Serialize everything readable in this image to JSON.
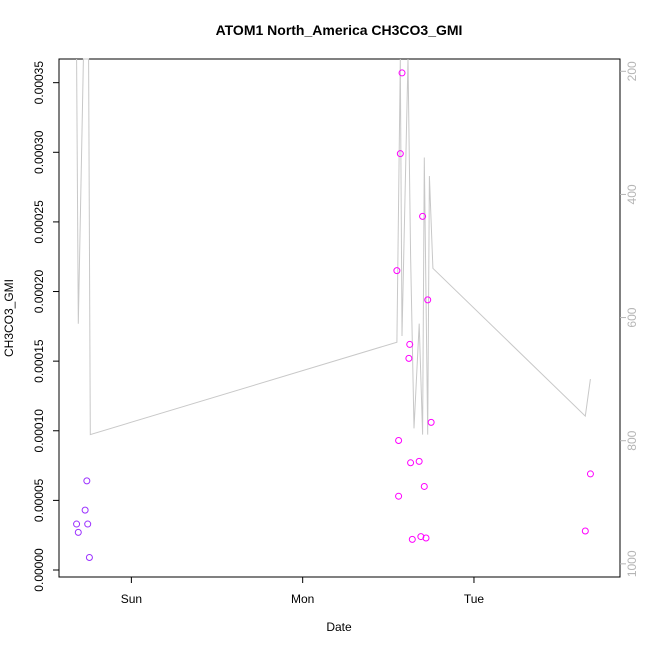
{
  "chart_data": {
    "type": "scatter",
    "title": "ATOM1 North_America CH3CO3_GMI",
    "xlabel": "Date",
    "ylabel": "CH3CO3_GMI",
    "x_ticks": [
      "Sun",
      "Mon",
      "Tue"
    ],
    "y_ticks": [
      "0.00000",
      "0.00005",
      "0.00010",
      "0.00015",
      "0.00020",
      "0.00025",
      "0.00030",
      "0.00035"
    ],
    "y_right_ticks": [
      "200",
      "400",
      "600",
      "800",
      "1000"
    ],
    "y_right_reversed": true,
    "x_unit": "days after Sun 00:00",
    "xlim": [
      -0.37,
      2.8
    ],
    "ylim": [
      0,
      0.000367
    ],
    "y_right_lim": [
      1010,
      180
    ],
    "grid": false,
    "series": [
      {
        "role": "points",
        "color": "#9b30ff",
        "points": [
          {
            "x": -0.32,
            "y": 3.3e-05
          },
          {
            "x": -0.31,
            "y": 2.7e-05
          },
          {
            "x": -0.27,
            "y": 4.3e-05
          },
          {
            "x": -0.26,
            "y": 6.4e-05
          },
          {
            "x": -0.255,
            "y": 3.3e-05
          },
          {
            "x": -0.245,
            "y": 9e-06
          }
        ]
      },
      {
        "role": "points",
        "color": "#ff00ff",
        "points": [
          {
            "x": 1.55,
            "y": 0.000215
          },
          {
            "x": 1.56,
            "y": 9.3e-05
          },
          {
            "x": 1.56,
            "y": 5.3e-05
          },
          {
            "x": 1.57,
            "y": 0.000299
          },
          {
            "x": 1.58,
            "y": 0.000357
          },
          {
            "x": 1.62,
            "y": 0.000152
          },
          {
            "x": 1.625,
            "y": 0.000162
          },
          {
            "x": 1.63,
            "y": 7.7e-05
          },
          {
            "x": 1.64,
            "y": 2.2e-05
          },
          {
            "x": 1.68,
            "y": 7.8e-05
          },
          {
            "x": 1.69,
            "y": 2.4e-05
          },
          {
            "x": 1.7,
            "y": 0.000254
          },
          {
            "x": 1.71,
            "y": 6e-05
          },
          {
            "x": 1.72,
            "y": 2.3e-05
          },
          {
            "x": 1.73,
            "y": 0.000194
          },
          {
            "x": 1.75,
            "y": 0.000106
          },
          {
            "x": 2.65,
            "y": 2.8e-05
          },
          {
            "x": 2.68,
            "y": 6.9e-05
          }
        ]
      },
      {
        "role": "line",
        "axis": "right",
        "color": "#c8c8c8",
        "points": [
          {
            "x": -0.32,
            "y": 180
          },
          {
            "x": -0.31,
            "y": 610
          },
          {
            "x": -0.28,
            "y": 180
          },
          {
            "x": -0.25,
            "y": 180
          },
          {
            "x": -0.24,
            "y": 790
          },
          {
            "x": 1.55,
            "y": 640
          },
          {
            "x": 1.57,
            "y": 180
          },
          {
            "x": 1.58,
            "y": 630
          },
          {
            "x": 1.615,
            "y": 180
          },
          {
            "x": 1.63,
            "y": 500
          },
          {
            "x": 1.65,
            "y": 780
          },
          {
            "x": 1.68,
            "y": 610
          },
          {
            "x": 1.7,
            "y": 790
          },
          {
            "x": 1.71,
            "y": 340
          },
          {
            "x": 1.73,
            "y": 790
          },
          {
            "x": 1.74,
            "y": 370
          },
          {
            "x": 1.76,
            "y": 520
          },
          {
            "x": 2.65,
            "y": 760
          },
          {
            "x": 2.68,
            "y": 700
          }
        ]
      }
    ]
  }
}
